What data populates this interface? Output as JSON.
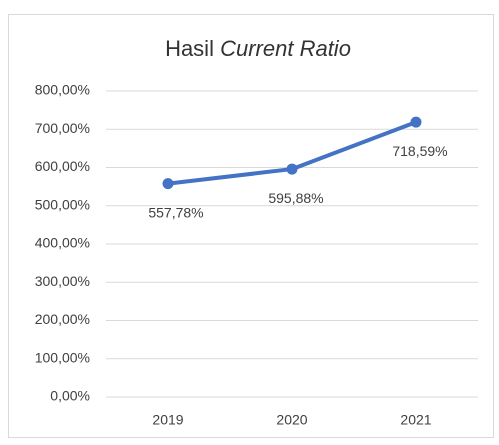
{
  "chart_data": {
    "type": "line",
    "title": [
      "Hasil",
      "Current Ratio"
    ],
    "categories": [
      "2019",
      "2020",
      "2021"
    ],
    "series": [
      {
        "name": "Current Ratio",
        "color": "#4472c4",
        "values": [
          557.78,
          595.88,
          718.59
        ],
        "value_labels": [
          "557,78%",
          "595,88%",
          "718,59%"
        ]
      }
    ],
    "ylim": [
      0,
      800
    ],
    "yticks": [
      {
        "value": 0,
        "label": "0,00%"
      },
      {
        "value": 100,
        "label": "100,00%"
      },
      {
        "value": 200,
        "label": "200,00%"
      },
      {
        "value": 300,
        "label": "300,00%"
      },
      {
        "value": 400,
        "label": "400,00%"
      },
      {
        "value": 500,
        "label": "500,00%"
      },
      {
        "value": 600,
        "label": "600,00%"
      },
      {
        "value": 700,
        "label": "700,00%"
      },
      {
        "value": 800,
        "label": "800,00%"
      }
    ],
    "grid": true
  }
}
